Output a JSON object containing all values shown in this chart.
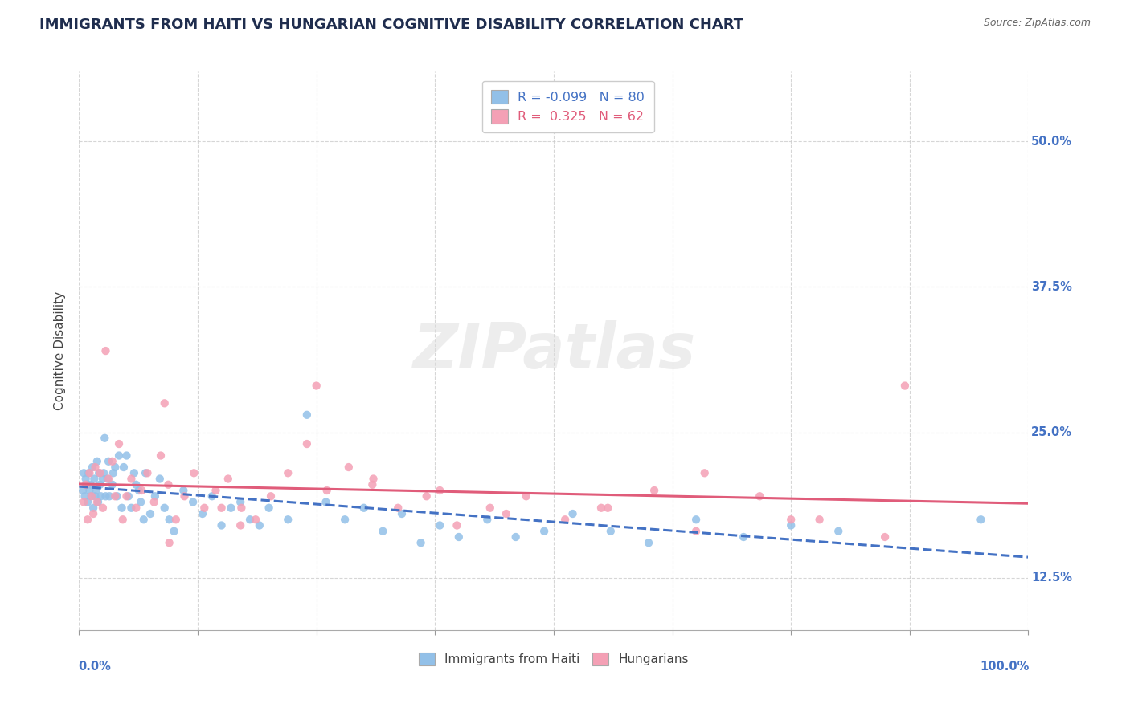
{
  "title": "IMMIGRANTS FROM HAITI VS HUNGARIAN COGNITIVE DISABILITY CORRELATION CHART",
  "source": "Source: ZipAtlas.com",
  "ylabel": "Cognitive Disability",
  "color_blue": "#92C0E8",
  "color_pink": "#F4A0B5",
  "trend_blue": "#4472C4",
  "trend_pink": "#E05C7A",
  "grid_color": "#CCCCCC",
  "text_color": "#4472C4",
  "background": "#FFFFFF",
  "haiti_x": [
    0.004,
    0.005,
    0.006,
    0.007,
    0.008,
    0.009,
    0.01,
    0.011,
    0.012,
    0.013,
    0.014,
    0.015,
    0.016,
    0.017,
    0.018,
    0.019,
    0.02,
    0.021,
    0.022,
    0.023,
    0.025,
    0.026,
    0.027,
    0.028,
    0.03,
    0.031,
    0.032,
    0.035,
    0.036,
    0.038,
    0.04,
    0.042,
    0.045,
    0.047,
    0.05,
    0.052,
    0.055,
    0.058,
    0.06,
    0.063,
    0.065,
    0.068,
    0.07,
    0.075,
    0.08,
    0.085,
    0.09,
    0.095,
    0.1,
    0.11,
    0.12,
    0.13,
    0.14,
    0.15,
    0.16,
    0.17,
    0.18,
    0.19,
    0.2,
    0.22,
    0.24,
    0.26,
    0.28,
    0.3,
    0.32,
    0.34,
    0.36,
    0.38,
    0.4,
    0.43,
    0.46,
    0.49,
    0.52,
    0.56,
    0.6,
    0.65,
    0.7,
    0.75,
    0.8,
    0.95
  ],
  "haiti_y": [
    0.2,
    0.215,
    0.195,
    0.21,
    0.205,
    0.19,
    0.215,
    0.2,
    0.205,
    0.195,
    0.22,
    0.185,
    0.21,
    0.195,
    0.2,
    0.225,
    0.19,
    0.215,
    0.205,
    0.195,
    0.21,
    0.215,
    0.245,
    0.195,
    0.21,
    0.225,
    0.195,
    0.205,
    0.215,
    0.22,
    0.195,
    0.23,
    0.185,
    0.22,
    0.23,
    0.195,
    0.185,
    0.215,
    0.205,
    0.2,
    0.19,
    0.175,
    0.215,
    0.18,
    0.195,
    0.21,
    0.185,
    0.175,
    0.165,
    0.2,
    0.19,
    0.18,
    0.195,
    0.17,
    0.185,
    0.19,
    0.175,
    0.17,
    0.185,
    0.175,
    0.265,
    0.19,
    0.175,
    0.185,
    0.165,
    0.18,
    0.155,
    0.17,
    0.16,
    0.175,
    0.16,
    0.165,
    0.18,
    0.165,
    0.155,
    0.175,
    0.16,
    0.17,
    0.165,
    0.175
  ],
  "hungarian_x": [
    0.005,
    0.007,
    0.009,
    0.011,
    0.013,
    0.015,
    0.017,
    0.019,
    0.022,
    0.025,
    0.028,
    0.031,
    0.035,
    0.038,
    0.042,
    0.046,
    0.05,
    0.055,
    0.06,
    0.066,
    0.072,
    0.079,
    0.086,
    0.094,
    0.102,
    0.111,
    0.121,
    0.132,
    0.144,
    0.157,
    0.171,
    0.186,
    0.202,
    0.22,
    0.24,
    0.261,
    0.284,
    0.309,
    0.336,
    0.366,
    0.398,
    0.433,
    0.471,
    0.512,
    0.557,
    0.606,
    0.659,
    0.717,
    0.78,
    0.849,
    0.09,
    0.095,
    0.15,
    0.17,
    0.25,
    0.31,
    0.38,
    0.45,
    0.55,
    0.65,
    0.75,
    0.87
  ],
  "hungarian_y": [
    0.19,
    0.205,
    0.175,
    0.215,
    0.195,
    0.18,
    0.22,
    0.19,
    0.215,
    0.185,
    0.32,
    0.21,
    0.225,
    0.195,
    0.24,
    0.175,
    0.195,
    0.21,
    0.185,
    0.2,
    0.215,
    0.19,
    0.23,
    0.205,
    0.175,
    0.195,
    0.215,
    0.185,
    0.2,
    0.21,
    0.185,
    0.175,
    0.195,
    0.215,
    0.24,
    0.2,
    0.22,
    0.205,
    0.185,
    0.195,
    0.17,
    0.185,
    0.195,
    0.175,
    0.185,
    0.2,
    0.215,
    0.195,
    0.175,
    0.16,
    0.275,
    0.155,
    0.185,
    0.17,
    0.29,
    0.21,
    0.2,
    0.18,
    0.185,
    0.165,
    0.175,
    0.29
  ],
  "x_ticks": [
    0.0,
    0.125,
    0.25,
    0.375,
    0.5,
    0.625,
    0.75,
    0.875,
    1.0
  ],
  "y_tick_vals": [
    0.125,
    0.25,
    0.375,
    0.5
  ],
  "y_tick_labels": [
    "12.5%",
    "25.0%",
    "37.5%",
    "50.0%"
  ],
  "ylim": [
    0.08,
    0.56
  ],
  "xlim": [
    0.0,
    1.0
  ]
}
